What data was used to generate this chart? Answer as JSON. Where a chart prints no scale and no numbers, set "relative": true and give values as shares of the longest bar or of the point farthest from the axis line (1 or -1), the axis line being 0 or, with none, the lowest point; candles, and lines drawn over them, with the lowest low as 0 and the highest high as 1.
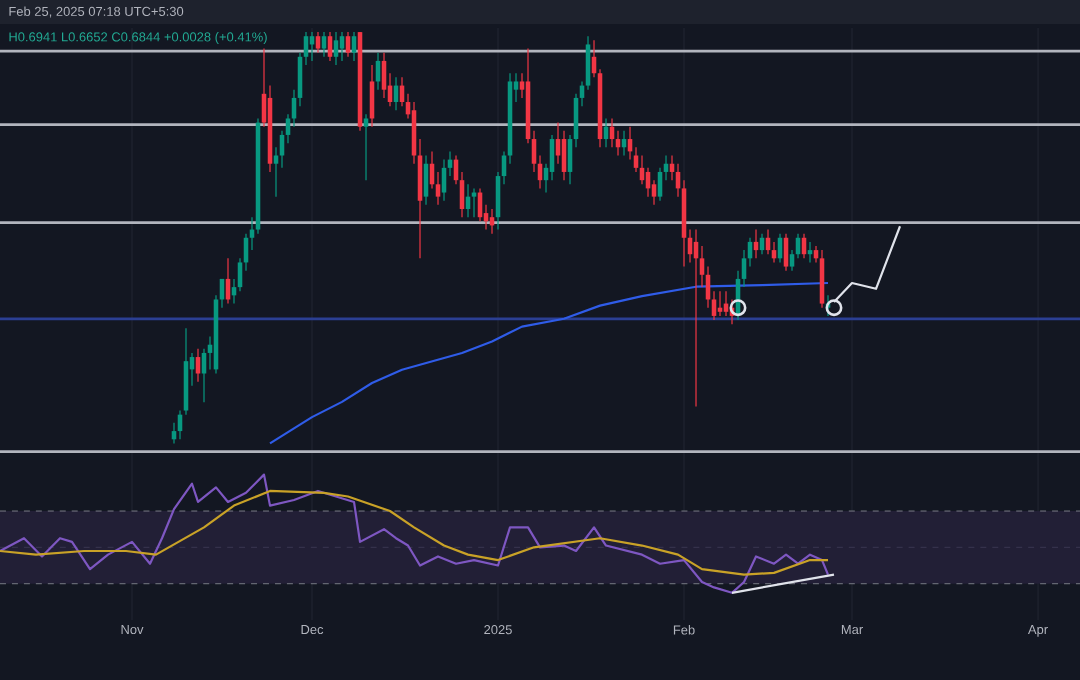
{
  "chart_data": [
    {
      "type": "candlestick",
      "relative": true,
      "grid": "x",
      "tick_labels": false,
      "annotations": [
        "Feb 25, 2025 07:18 UTC+5:30",
        "H0.6941 L0.6652 C0.6844 +0.0028 (+0.41%)"
      ],
      "xlim": [
        "2024-10-10",
        "2025-04-08"
      ],
      "xticks": [
        {
          "value": "2024-11-01",
          "label": null
        },
        {
          "value": "2024-12-01",
          "label": null
        },
        {
          "value": "2025-01-01",
          "label": null
        },
        {
          "value": "2025-02-01",
          "label": null
        },
        {
          "value": "2025-03-01",
          "label": null
        },
        {
          "value": "2025-04-01",
          "label": null
        }
      ],
      "x": [
        "2024-11-08",
        "2024-11-09",
        "2024-11-10",
        "2024-11-11",
        "2024-11-12",
        "2024-11-13",
        "2024-11-14",
        "2024-11-15",
        "2024-11-16",
        "2024-11-17",
        "2024-11-18",
        "2024-11-19",
        "2024-11-20",
        "2024-11-21",
        "2024-11-22",
        "2024-11-23",
        "2024-11-24",
        "2024-11-25",
        "2024-11-26",
        "2024-11-27",
        "2024-11-28",
        "2024-11-29",
        "2024-11-30",
        "2024-12-01",
        "2024-12-02",
        "2024-12-03",
        "2024-12-04",
        "2024-12-05",
        "2024-12-06",
        "2024-12-07",
        "2024-12-08",
        "2024-12-09",
        "2024-12-10",
        "2024-12-11",
        "2024-12-12",
        "2024-12-13",
        "2024-12-14",
        "2024-12-15",
        "2024-12-16",
        "2024-12-17",
        "2024-12-18",
        "2024-12-19",
        "2024-12-20",
        "2024-12-21",
        "2024-12-22",
        "2024-12-23",
        "2024-12-24",
        "2024-12-25",
        "2024-12-26",
        "2024-12-27",
        "2024-12-28",
        "2024-12-29",
        "2024-12-30",
        "2024-12-31",
        "2025-01-01",
        "2025-01-02",
        "2025-01-03",
        "2025-01-04",
        "2025-01-05",
        "2025-01-06",
        "2025-01-07",
        "2025-01-08",
        "2025-01-09",
        "2025-01-10",
        "2025-01-11",
        "2025-01-12",
        "2025-01-13",
        "2025-01-14",
        "2025-01-15",
        "2025-01-16",
        "2025-01-17",
        "2025-01-18",
        "2025-01-19",
        "2025-01-20",
        "2025-01-21",
        "2025-01-22",
        "2025-01-23",
        "2025-01-24",
        "2025-01-25",
        "2025-01-26",
        "2025-01-27",
        "2025-01-28",
        "2025-01-29",
        "2025-01-30",
        "2025-01-31",
        "2025-02-01",
        "2025-02-02",
        "2025-02-03",
        "2025-02-04",
        "2025-02-05",
        "2025-02-06",
        "2025-02-07",
        "2025-02-08",
        "2025-02-09",
        "2025-02-10",
        "2025-02-11",
        "2025-02-12",
        "2025-02-13",
        "2025-02-14",
        "2025-02-15",
        "2025-02-16",
        "2025-02-17",
        "2025-02-18",
        "2025-02-19",
        "2025-02-20",
        "2025-02-21",
        "2025-02-22",
        "2025-02-23",
        "2025-02-24",
        "2025-02-25"
      ],
      "ohlc": [
        [
          0.01,
          0.05,
          0.0,
          0.03
        ],
        [
          0.03,
          0.08,
          0.01,
          0.07
        ],
        [
          0.08,
          0.28,
          0.07,
          0.2
        ],
        [
          0.18,
          0.22,
          0.14,
          0.21
        ],
        [
          0.21,
          0.23,
          0.15,
          0.17
        ],
        [
          0.17,
          0.23,
          0.1,
          0.22
        ],
        [
          0.22,
          0.26,
          0.18,
          0.24
        ],
        [
          0.18,
          0.36,
          0.17,
          0.35
        ],
        [
          0.35,
          0.4,
          0.33,
          0.4
        ],
        [
          0.4,
          0.45,
          0.34,
          0.35
        ],
        [
          0.36,
          0.4,
          0.34,
          0.38
        ],
        [
          0.38,
          0.45,
          0.37,
          0.44
        ],
        [
          0.44,
          0.51,
          0.42,
          0.5
        ],
        [
          0.5,
          0.55,
          0.47,
          0.52
        ],
        [
          0.52,
          0.79,
          0.51,
          0.78
        ],
        [
          0.85,
          0.96,
          0.77,
          0.78
        ],
        [
          0.84,
          0.87,
          0.66,
          0.68
        ],
        [
          0.68,
          0.72,
          0.6,
          0.7
        ],
        [
          0.7,
          0.76,
          0.67,
          0.75
        ],
        [
          0.75,
          0.8,
          0.73,
          0.79
        ],
        [
          0.79,
          0.86,
          0.77,
          0.84
        ],
        [
          0.84,
          0.95,
          0.82,
          0.94
        ],
        [
          0.94,
          1.0,
          0.92,
          0.99
        ],
        [
          0.97,
          1.0,
          0.93,
          0.99
        ],
        [
          0.99,
          1.0,
          0.95,
          0.96
        ],
        [
          0.96,
          1.0,
          0.94,
          0.99
        ],
        [
          0.99,
          1.0,
          0.93,
          0.94
        ],
        [
          0.94,
          1.0,
          0.92,
          0.98
        ],
        [
          0.96,
          1.0,
          0.93,
          0.99
        ],
        [
          0.99,
          1.0,
          0.94,
          0.95
        ],
        [
          0.95,
          1.0,
          0.93,
          0.99
        ],
        [
          1.0,
          1.0,
          0.76,
          0.77
        ],
        [
          0.77,
          0.8,
          0.64,
          0.79
        ],
        [
          0.88,
          0.92,
          0.77,
          0.79
        ],
        [
          0.88,
          0.95,
          0.86,
          0.93
        ],
        [
          0.93,
          0.95,
          0.84,
          0.86
        ],
        [
          0.87,
          0.9,
          0.82,
          0.83
        ],
        [
          0.83,
          0.89,
          0.81,
          0.87
        ],
        [
          0.87,
          0.89,
          0.82,
          0.83
        ],
        [
          0.83,
          0.85,
          0.79,
          0.8
        ],
        [
          0.81,
          0.83,
          0.68,
          0.7
        ],
        [
          0.7,
          0.74,
          0.45,
          0.59
        ],
        [
          0.6,
          0.7,
          0.58,
          0.68
        ],
        [
          0.68,
          0.71,
          0.62,
          0.63
        ],
        [
          0.63,
          0.66,
          0.58,
          0.6
        ],
        [
          0.61,
          0.69,
          0.59,
          0.67
        ],
        [
          0.67,
          0.71,
          0.65,
          0.69
        ],
        [
          0.69,
          0.7,
          0.63,
          0.64
        ],
        [
          0.64,
          0.66,
          0.55,
          0.57
        ],
        [
          0.57,
          0.63,
          0.55,
          0.6
        ],
        [
          0.6,
          0.62,
          0.55,
          0.61
        ],
        [
          0.61,
          0.62,
          0.54,
          0.55
        ],
        [
          0.56,
          0.58,
          0.52,
          0.54
        ],
        [
          0.55,
          0.57,
          0.51,
          0.53
        ],
        [
          0.55,
          0.66,
          0.52,
          0.65
        ],
        [
          0.65,
          0.71,
          0.63,
          0.7
        ],
        [
          0.7,
          0.9,
          0.68,
          0.88
        ],
        [
          0.86,
          0.9,
          0.83,
          0.88
        ],
        [
          0.88,
          0.9,
          0.84,
          0.86
        ],
        [
          0.88,
          0.96,
          0.73,
          0.74
        ],
        [
          0.74,
          0.76,
          0.66,
          0.68
        ],
        [
          0.68,
          0.7,
          0.62,
          0.64
        ],
        [
          0.64,
          0.68,
          0.61,
          0.67
        ],
        [
          0.66,
          0.75,
          0.64,
          0.74
        ],
        [
          0.74,
          0.78,
          0.68,
          0.7
        ],
        [
          0.74,
          0.76,
          0.64,
          0.66
        ],
        [
          0.66,
          0.75,
          0.63,
          0.74
        ],
        [
          0.74,
          0.85,
          0.72,
          0.84
        ],
        [
          0.84,
          0.88,
          0.82,
          0.87
        ],
        [
          0.87,
          0.99,
          0.86,
          0.97
        ],
        [
          0.94,
          0.98,
          0.89,
          0.9
        ],
        [
          0.9,
          0.91,
          0.72,
          0.74
        ],
        [
          0.74,
          0.79,
          0.72,
          0.77
        ],
        [
          0.77,
          0.79,
          0.72,
          0.74
        ],
        [
          0.74,
          0.76,
          0.7,
          0.72
        ],
        [
          0.72,
          0.76,
          0.7,
          0.74
        ],
        [
          0.74,
          0.77,
          0.69,
          0.71
        ],
        [
          0.7,
          0.72,
          0.66,
          0.67
        ],
        [
          0.67,
          0.7,
          0.63,
          0.64
        ],
        [
          0.66,
          0.67,
          0.6,
          0.62
        ],
        [
          0.63,
          0.64,
          0.58,
          0.6
        ],
        [
          0.6,
          0.67,
          0.59,
          0.66
        ],
        [
          0.66,
          0.7,
          0.64,
          0.68
        ],
        [
          0.68,
          0.7,
          0.64,
          0.66
        ],
        [
          0.66,
          0.68,
          0.6,
          0.62
        ],
        [
          0.62,
          0.64,
          0.43,
          0.5
        ],
        [
          0.5,
          0.52,
          0.44,
          0.46
        ],
        [
          0.49,
          0.52,
          0.09,
          0.45
        ],
        [
          0.45,
          0.48,
          0.38,
          0.41
        ],
        [
          0.41,
          0.43,
          0.33,
          0.35
        ],
        [
          0.35,
          0.37,
          0.3,
          0.31
        ],
        [
          0.33,
          0.37,
          0.31,
          0.32
        ],
        [
          0.34,
          0.37,
          0.31,
          0.32
        ],
        [
          0.33,
          0.35,
          0.29,
          0.31
        ],
        [
          0.31,
          0.42,
          0.3,
          0.4
        ],
        [
          0.4,
          0.47,
          0.38,
          0.45
        ],
        [
          0.45,
          0.5,
          0.43,
          0.49
        ],
        [
          0.49,
          0.52,
          0.45,
          0.47
        ],
        [
          0.47,
          0.51,
          0.46,
          0.5
        ],
        [
          0.5,
          0.52,
          0.46,
          0.47
        ],
        [
          0.47,
          0.49,
          0.44,
          0.45
        ],
        [
          0.45,
          0.51,
          0.44,
          0.5
        ],
        [
          0.5,
          0.51,
          0.42,
          0.43
        ],
        [
          0.43,
          0.47,
          0.42,
          0.46
        ],
        [
          0.46,
          0.51,
          0.45,
          0.5
        ],
        [
          0.5,
          0.51,
          0.45,
          0.46
        ],
        [
          0.46,
          0.49,
          0.44,
          0.47
        ],
        [
          0.47,
          0.48,
          0.44,
          0.45
        ],
        [
          0.45,
          0.47,
          0.33,
          0.34
        ],
        [
          0.33,
          0.36,
          0.31,
          0.34
        ]
      ],
      "series": [
        {
          "type": "line",
          "color": "#2f5ce8",
          "x": [
            "2024-11-24",
            "2024-12-01",
            "2024-12-06",
            "2024-12-11",
            "2024-12-16",
            "2024-12-26",
            "2024-12-31",
            "2025-01-05",
            "2025-01-12",
            "2025-01-18",
            "2025-01-25",
            "2025-02-03",
            "2025-02-14",
            "2025-02-25"
          ],
          "values": [
            0.0,
            0.064,
            0.101,
            0.147,
            0.179,
            0.22,
            0.248,
            0.284,
            0.303,
            0.335,
            0.358,
            0.381,
            0.385,
            0.39
          ]
        },
        {
          "type": "line",
          "color": "#e0e3eb",
          "x": [
            "2025-02-26",
            "2025-03-01",
            "2025-03-05",
            "2025-03-09"
          ],
          "values": [
            0.344,
            0.39,
            0.376,
            0.528
          ]
        },
        {
          "type": "scatter",
          "marker": "circle",
          "color": "#e0e3eb",
          "x": [
            "2025-02-10",
            "2025-02-26"
          ],
          "values": [
            0.33,
            0.33
          ]
        }
      ],
      "ref_lines": [
        {
          "axis": "y",
          "value": 0.954,
          "color": "#b2b5be"
        },
        {
          "axis": "y",
          "value": 0.775,
          "color": "#b2b5be"
        },
        {
          "axis": "y",
          "value": 0.537,
          "color": "#b2b5be"
        },
        {
          "axis": "y",
          "value": 0.303,
          "color": "#2b3f93"
        },
        {
          "axis": "y",
          "value": -0.02,
          "color": "#b2b5be"
        }
      ]
    },
    {
      "type": "line",
      "relative": true,
      "grid": "x",
      "tick_labels": "x",
      "xlim": [
        "2024-10-10",
        "2025-04-08"
      ],
      "xticks": [
        {
          "value": "2024-11-01",
          "label": "Nov"
        },
        {
          "value": "2024-12-01",
          "label": "Dec"
        },
        {
          "value": "2025-01-01",
          "label": "2025"
        },
        {
          "value": "2025-02-01",
          "label": "Feb"
        },
        {
          "value": "2025-03-01",
          "label": "Mar"
        },
        {
          "value": "2025-04-01",
          "label": "Apr"
        }
      ],
      "bands": [
        {
          "axis": "y",
          "from": 0.077,
          "to": 0.692,
          "color": "#221f36"
        }
      ],
      "ref_lines": [
        {
          "axis": "y",
          "value": 0.692,
          "color": "#787b86",
          "line_style": "dashed"
        },
        {
          "axis": "y",
          "value": 0.385,
          "color": "#3a3650",
          "line_style": "dashed"
        },
        {
          "axis": "y",
          "value": 0.077,
          "color": "#787b86",
          "line_style": "dashed"
        }
      ],
      "series": [
        {
          "color": "#7e57c2",
          "x": [
            "2024-10-10",
            "2024-10-14",
            "2024-10-17",
            "2024-10-20",
            "2024-10-22",
            "2024-10-25",
            "2024-10-28",
            "2024-11-01",
            "2024-11-04",
            "2024-11-06",
            "2024-11-08",
            "2024-11-11",
            "2024-11-12",
            "2024-11-15",
            "2024-11-17",
            "2024-11-20",
            "2024-11-23",
            "2024-11-24",
            "2024-11-28",
            "2024-12-02",
            "2024-12-05",
            "2024-12-08",
            "2024-12-09",
            "2024-12-13",
            "2024-12-15",
            "2024-12-17",
            "2024-12-19",
            "2024-12-22",
            "2024-12-25",
            "2024-12-28",
            "2025-01-01",
            "2025-01-03",
            "2025-01-06",
            "2025-01-08",
            "2025-01-12",
            "2025-01-14",
            "2025-01-17",
            "2025-01-19",
            "2025-01-25",
            "2025-01-28",
            "2025-02-01",
            "2025-02-04",
            "2025-02-06",
            "2025-02-09",
            "2025-02-11",
            "2025-02-13",
            "2025-02-16",
            "2025-02-18",
            "2025-02-20",
            "2025-02-22",
            "2025-02-24",
            "2025-02-25"
          ],
          "values": [
            0.354,
            0.462,
            0.308,
            0.462,
            0.431,
            0.2,
            0.323,
            0.431,
            0.246,
            0.462,
            0.708,
            0.923,
            0.769,
            0.892,
            0.769,
            0.846,
            1.0,
            0.738,
            0.785,
            0.862,
            0.815,
            0.769,
            0.431,
            0.538,
            0.462,
            0.4,
            0.231,
            0.308,
            0.246,
            0.277,
            0.231,
            0.554,
            0.554,
            0.385,
            0.4,
            0.354,
            0.554,
            0.4,
            0.323,
            0.246,
            0.277,
            0.092,
            0.046,
            0.0,
            0.092,
            0.308,
            0.246,
            0.323,
            0.246,
            0.323,
            0.277,
            0.154
          ]
        },
        {
          "color": "#c9a227",
          "x": [
            "2024-10-10",
            "2024-10-16",
            "2024-10-24",
            "2024-10-31",
            "2024-11-05",
            "2024-11-13",
            "2024-11-18",
            "2024-11-24",
            "2024-12-03",
            "2024-12-07",
            "2024-12-14",
            "2024-12-18",
            "2024-12-23",
            "2024-12-27",
            "2025-01-01",
            "2025-01-07",
            "2025-01-18",
            "2025-01-25",
            "2025-01-31",
            "2025-02-04",
            "2025-02-11",
            "2025-02-16",
            "2025-02-22",
            "2025-02-25"
          ],
          "values": [
            0.354,
            0.323,
            0.354,
            0.354,
            0.323,
            0.554,
            0.738,
            0.862,
            0.846,
            0.815,
            0.692,
            0.554,
            0.4,
            0.323,
            0.277,
            0.385,
            0.462,
            0.4,
            0.323,
            0.2,
            0.154,
            0.169,
            0.277,
            0.277
          ]
        },
        {
          "color": "#e0e3eb",
          "x": [
            "2025-02-09",
            "2025-02-26"
          ],
          "values": [
            0.0,
            0.154
          ]
        }
      ]
    }
  ]
}
